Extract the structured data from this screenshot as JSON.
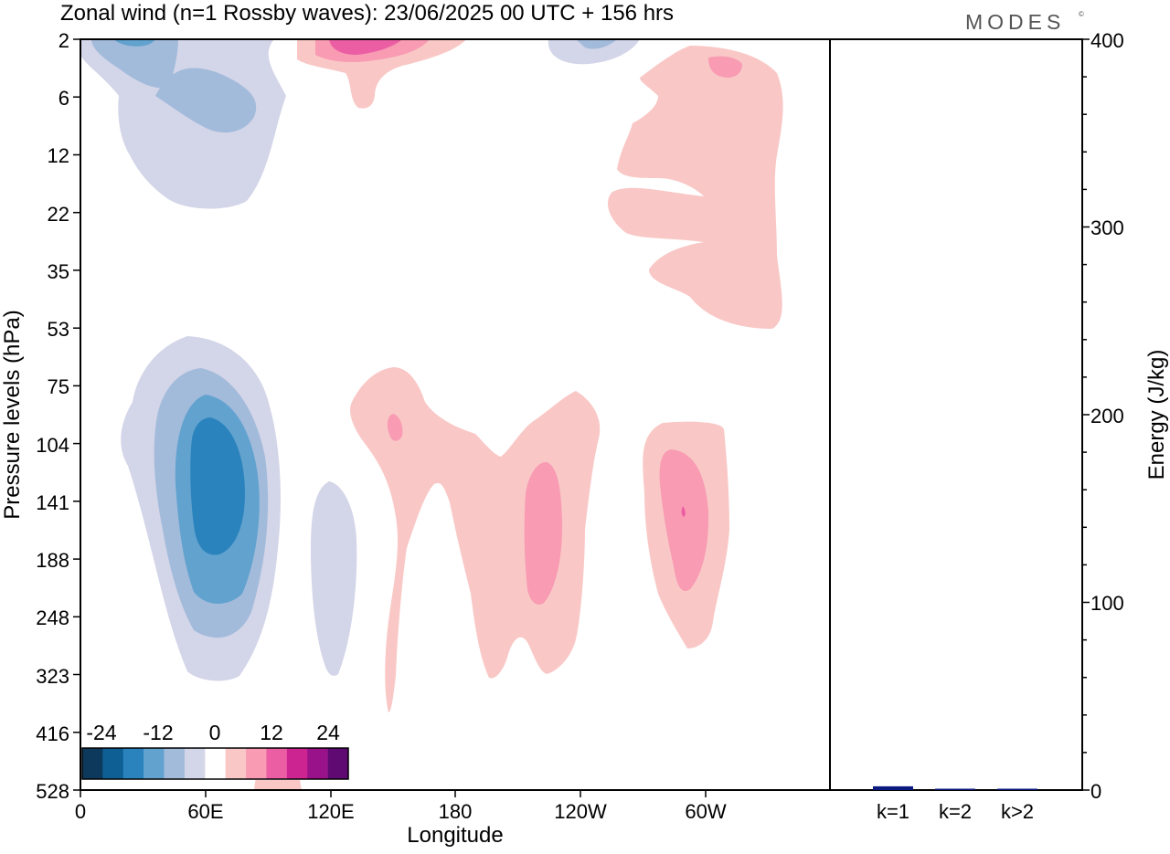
{
  "header": {
    "title": "Zonal wind (n=1 Rossby waves):  23/06/2025  00 UTC  + 156 hrs",
    "brand": "MODES",
    "brand_mark": "©"
  },
  "chart_data": [
    {
      "type": "heatmap",
      "title": "Zonal wind (n=1 Rossby waves):  23/06/2025  00 UTC  + 156 hrs",
      "xlabel": "Longitude",
      "ylabel": "Pressure levels (hPa)",
      "x_ticks": [
        "0",
        "60E",
        "120E",
        "180",
        "120W",
        "60W"
      ],
      "x_tick_degrees": [
        0,
        60,
        120,
        180,
        240,
        300
      ],
      "x_range_degrees": [
        0,
        360
      ],
      "y_ticks": [
        "2",
        "6",
        "12",
        "22",
        "35",
        "53",
        "75",
        "104",
        "141",
        "188",
        "248",
        "323",
        "416",
        "528"
      ],
      "y_axis": "pressure levels, top = 2 hPa, bottom = 528 hPa",
      "colorbar": {
        "labels": [
          "-24",
          "-12",
          "0",
          "12",
          "24"
        ],
        "colors": [
          "#0d3a5c",
          "#0e5f93",
          "#2b83bd",
          "#62a2cf",
          "#a3bbdb",
          "#d3d5e8",
          "#ffffff",
          "#f9c8c6",
          "#f89bb3",
          "#ec5ea4",
          "#cc2592",
          "#99128a",
          "#5f0a73"
        ]
      },
      "regions": [
        {
          "sign": "negative",
          "level": "-4",
          "lon_center": 40,
          "pressure_top": "2",
          "pressure_bottom": "22"
        },
        {
          "sign": "negative",
          "level": "-8",
          "lon_center": 50,
          "pressure_top": "6",
          "pressure_bottom": "12"
        },
        {
          "sign": "negative",
          "level": "-16",
          "lon_center": 60,
          "pressure_top": "104",
          "pressure_bottom": "188"
        },
        {
          "sign": "negative",
          "level": "-4",
          "lon_center": 122,
          "pressure_top": "141",
          "pressure_bottom": "323"
        },
        {
          "sign": "positive",
          "level": "8",
          "lon_center": 125,
          "pressure_top": "2",
          "pressure_bottom": "2"
        },
        {
          "sign": "positive",
          "level": "4",
          "lon_center": 300,
          "pressure_top": "2",
          "pressure_bottom": "53"
        },
        {
          "sign": "positive",
          "level": "4",
          "lon_center": 190,
          "pressure_top": "75",
          "pressure_bottom": "416"
        },
        {
          "sign": "positive",
          "level": "8",
          "lon_center": 225,
          "pressure_top": "104",
          "pressure_bottom": "248"
        },
        {
          "sign": "positive",
          "level": "8",
          "lon_center": 290,
          "pressure_top": "104",
          "pressure_bottom": "248"
        }
      ]
    },
    {
      "type": "bar",
      "ylabel": "Energy (J/kg)",
      "ylim": [
        0,
        400
      ],
      "y_ticks": [
        "0",
        "100",
        "200",
        "300",
        "400"
      ],
      "categories": [
        "k=1",
        "k=2",
        "k>2"
      ],
      "values": [
        2,
        0.5,
        0.5
      ],
      "bar_color": "#0b1a80"
    }
  ]
}
